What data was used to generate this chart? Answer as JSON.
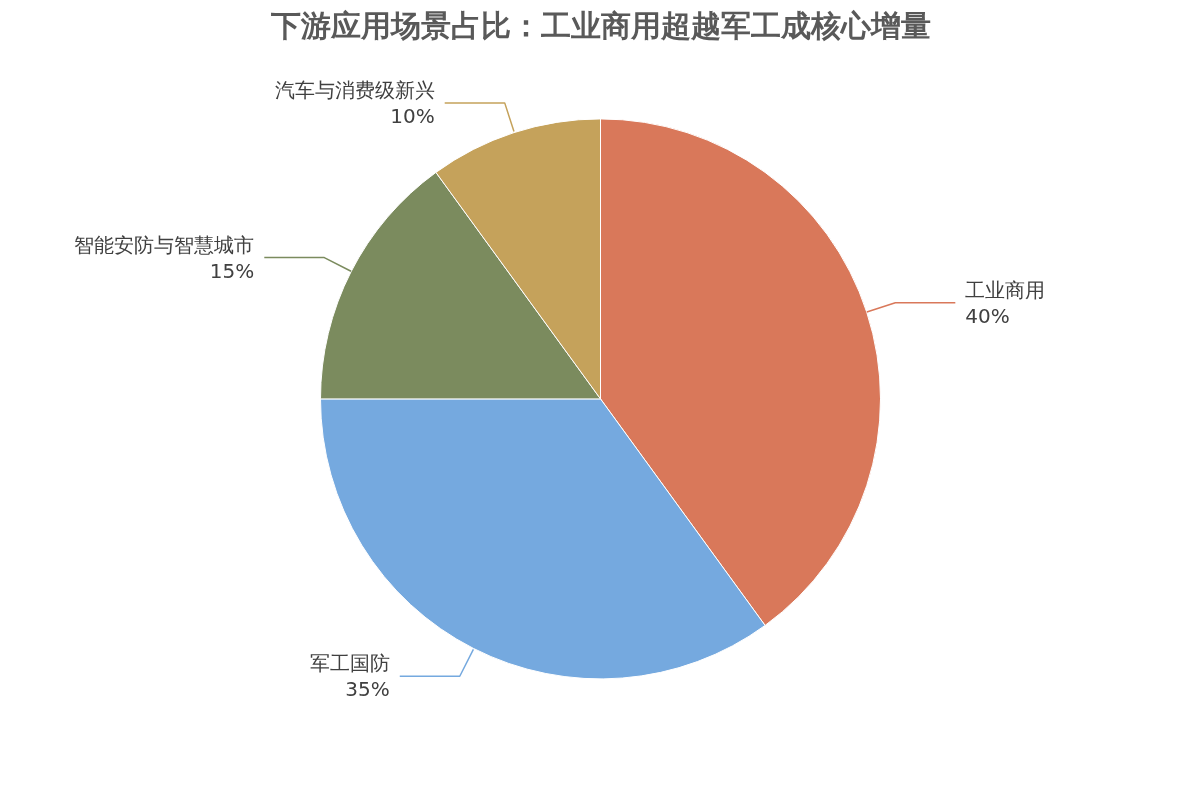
{
  "chart_data": {
    "type": "pie",
    "title": "下游应用场景占比：工业商用超越军工成核心增量",
    "categories": [
      "工业商用",
      "军工国防",
      "智能安防与智慧城市",
      "汽车与消费级新兴"
    ],
    "values": [
      40,
      35,
      15,
      10
    ],
    "value_labels": [
      "40%",
      "35%",
      "15%",
      "10%"
    ],
    "colors": [
      "#d9785a",
      "#75a9df",
      "#7b8b5e",
      "#c5a25b"
    ]
  }
}
